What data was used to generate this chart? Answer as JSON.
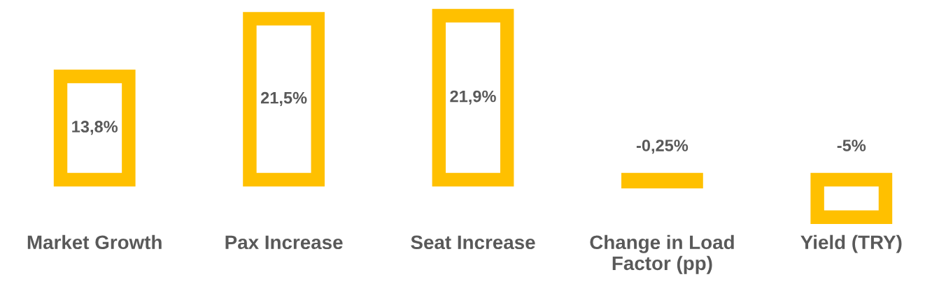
{
  "chart_data": {
    "type": "bar",
    "categories": [
      "Market Growth",
      "Pax Increase",
      "Seat Increase",
      "Change in Load Factor (pp)",
      "Yield (TRY)"
    ],
    "values": [
      13.8,
      21.5,
      21.9,
      -0.25,
      -5
    ],
    "value_labels": [
      "13,8%",
      "21,5%",
      "21,9%",
      "-0,25%",
      "-5%"
    ],
    "color": "#ffc000",
    "grid": false,
    "legend": false
  }
}
